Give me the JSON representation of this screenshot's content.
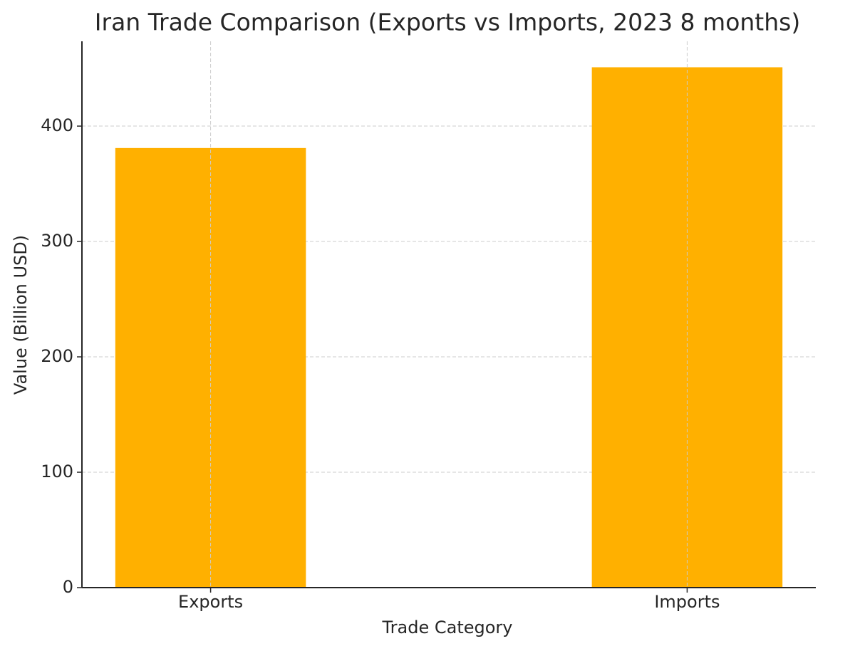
{
  "chart_data": {
    "type": "bar",
    "title": "Iran Trade Comparison (Exports vs Imports, 2023 8 months)",
    "x_label": "Trade Category",
    "y_label": "Value (Billion USD)",
    "categories": [
      "Exports",
      "Imports"
    ],
    "values": [
      381,
      451
    ],
    "color": "#ffb000",
    "ylim": [
      0,
      473.5
    ],
    "yticks": [
      0,
      100,
      200,
      300,
      400
    ],
    "grid": true
  }
}
